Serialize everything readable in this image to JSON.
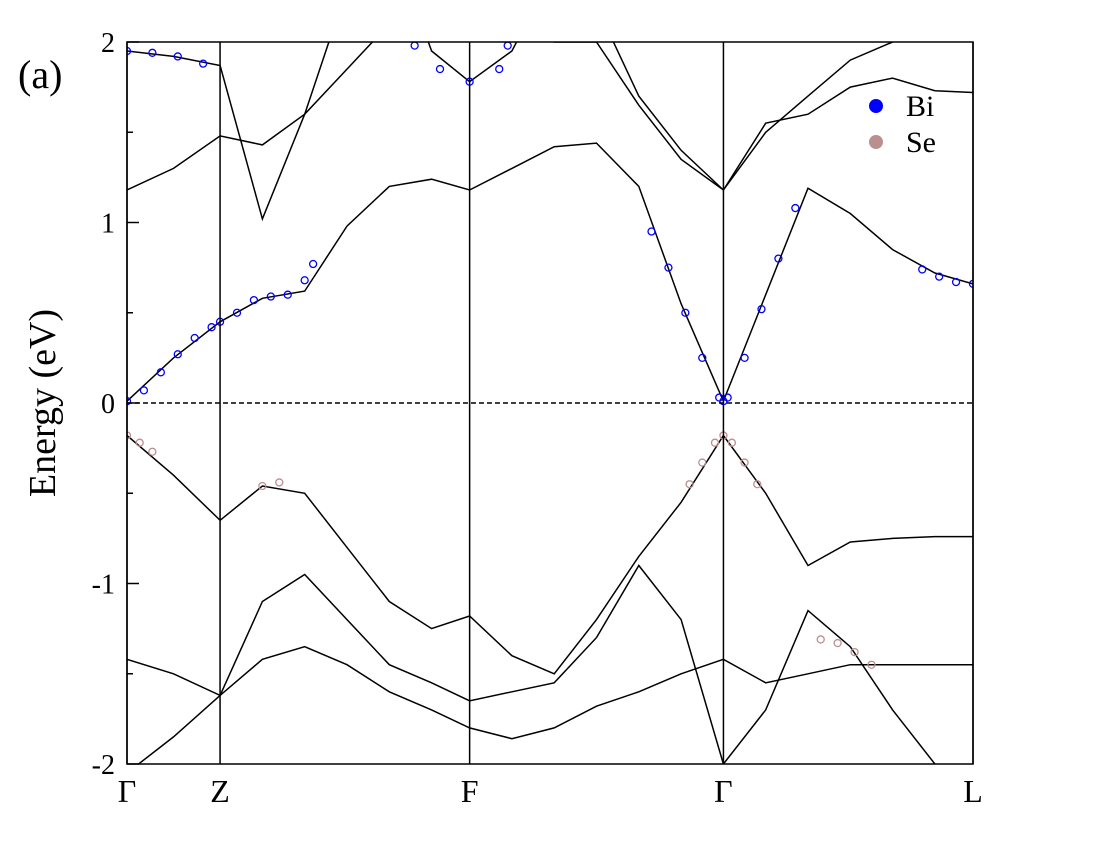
{
  "chart_data": {
    "type": "line",
    "panel_label": "(a)",
    "y_label": "Energy (eV)",
    "xlim": [
      0,
      1.0
    ],
    "ylim": [
      -2,
      2
    ],
    "xticks": [
      {
        "value": 0,
        "label": "Γ"
      },
      {
        "value": 0.11,
        "label": "Z"
      },
      {
        "value": 0.405,
        "label": "F"
      },
      {
        "value": 0.705,
        "label": "Γ"
      },
      {
        "value": 1.0,
        "label": "L"
      }
    ],
    "yticks": [
      -2,
      -1,
      0,
      1,
      2
    ],
    "yminorticks": [
      -1.5,
      -0.5,
      0.5,
      1.5
    ],
    "zero_line": true,
    "legend": "upper right",
    "x": [
      0,
      0.055,
      0.11,
      0.16,
      0.21,
      0.26,
      0.31,
      0.36,
      0.405,
      0.455,
      0.505,
      0.555,
      0.605,
      0.655,
      0.705,
      0.755,
      0.805,
      0.855,
      0.905,
      0.955,
      1.0
    ],
    "series": [
      {
        "color": "#000000",
        "values": [
          0.01,
          0.25,
          0.45,
          0.58,
          0.62,
          0.98,
          1.2,
          1.24,
          1.18,
          1.3,
          1.42,
          1.44,
          1.2,
          0.55,
          0.01,
          0.6,
          1.19,
          1.05,
          0.85,
          0.72,
          0.66
        ]
      },
      {
        "color": "#000000",
        "values": [
          -0.18,
          -0.4,
          -0.65,
          -0.46,
          -0.5,
          -0.8,
          -1.1,
          -1.25,
          -1.18,
          -1.4,
          -1.5,
          -1.2,
          -0.85,
          -0.55,
          -0.18,
          -0.5,
          -0.9,
          -0.77,
          -0.75,
          -0.74,
          -0.74
        ]
      },
      {
        "color": "#000000",
        "values": [
          -1.42,
          -1.5,
          -1.62,
          -1.42,
          -1.35,
          -1.45,
          -1.6,
          -1.7,
          -1.8,
          -1.86,
          -1.8,
          -1.68,
          -1.6,
          -1.5,
          -1.42,
          -1.55,
          -1.5,
          -1.45,
          -1.45,
          -1.45,
          -1.45
        ]
      },
      {
        "color": "#000000",
        "values": [
          -2.05,
          -1.85,
          -1.62,
          -1.1,
          -0.95,
          -1.2,
          -1.45,
          -1.55,
          -1.65,
          -1.6,
          -1.55,
          -1.3,
          -0.9,
          -1.2,
          -2.0,
          -1.7,
          -1.15,
          -1.35,
          -1.7,
          -2.0,
          -2.2
        ]
      },
      {
        "color": "#000000",
        "values": [
          1.18,
          1.3,
          1.48,
          1.43,
          1.6,
          1.85,
          2.1,
          2.3,
          2.4,
          2.2,
          2.0,
          2.0,
          1.65,
          1.35,
          1.18,
          1.5,
          1.7,
          1.9,
          2.0,
          2.1,
          2.2
        ]
      },
      {
        "color": "#000000",
        "values": [
          1.95,
          1.92,
          1.87,
          1.02,
          1.6,
          2.3,
          2.6,
          1.95,
          1.78,
          1.95,
          2.4,
          2.2,
          1.7,
          1.4,
          1.18,
          1.55,
          1.6,
          1.75,
          1.8,
          1.73,
          1.72
        ]
      }
    ],
    "projections": [
      {
        "name": "Bi",
        "color": "#0000ff",
        "x": [
          0,
          0.02,
          0.04,
          0.06,
          0.08,
          0.1,
          0.11,
          0.13,
          0.15,
          0.17,
          0.19,
          0.21,
          0.22,
          0,
          0.03,
          0.06,
          0.09,
          0.34,
          0.37,
          0.405,
          0.44,
          0.45,
          0.62,
          0.64,
          0.66,
          0.68,
          0.7,
          0.705,
          0.71,
          0.73,
          0.75,
          0.77,
          0.79,
          0.94,
          0.96,
          0.98,
          1.0
        ],
        "values": [
          0.01,
          0.07,
          0.17,
          0.27,
          0.36,
          0.42,
          0.45,
          0.5,
          0.57,
          0.59,
          0.6,
          0.68,
          0.77,
          1.95,
          1.94,
          1.92,
          1.88,
          1.98,
          1.85,
          1.78,
          1.85,
          1.98,
          0.95,
          0.75,
          0.5,
          0.25,
          0.03,
          0.01,
          0.03,
          0.25,
          0.52,
          0.8,
          1.08,
          0.74,
          0.7,
          0.67,
          0.66
        ]
      },
      {
        "name": "Se",
        "color": "#bc8f8f",
        "x": [
          0,
          0.015,
          0.03,
          0.16,
          0.18,
          0.665,
          0.68,
          0.695,
          0.705,
          0.715,
          0.73,
          0.745,
          0.82,
          0.84,
          0.86,
          0.88
        ],
        "values": [
          -0.18,
          -0.22,
          -0.27,
          -0.46,
          -0.44,
          -0.45,
          -0.33,
          -0.22,
          -0.18,
          -0.22,
          -0.33,
          -0.45,
          -1.31,
          -1.33,
          -1.38,
          -1.45
        ]
      }
    ]
  }
}
